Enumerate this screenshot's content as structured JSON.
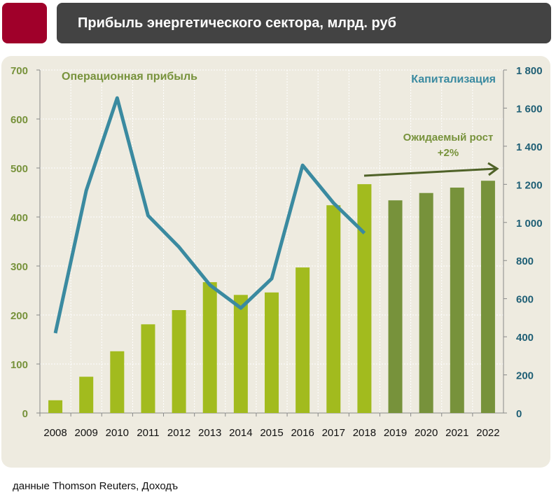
{
  "header": {
    "title": "Прибыль  энергетического сектора, млрд. руб"
  },
  "source": "данные Thomson Reuters, Доходъ",
  "colors": {
    "brand": "#a0002a",
    "header_bg": "#434343",
    "panel_bg": "#eeebe0",
    "bar_actual": "#a2bb1e",
    "bar_forecast": "#77923b",
    "line": "#3a8aa0",
    "left_axis_text": "#77923b",
    "right_axis_text": "#1f5f75",
    "arrow": "#4f6228"
  },
  "chart_data": {
    "type": "bar+line",
    "categories": [
      "2008",
      "2009",
      "2010",
      "2011",
      "2012",
      "2013",
      "2014",
      "2015",
      "2016",
      "2017",
      "2018",
      "2019",
      "2020",
      "2021",
      "2022"
    ],
    "series": [
      {
        "name": "Операционная прибыль",
        "type": "bar",
        "axis": "left",
        "values": [
          26,
          74,
          126,
          181,
          210,
          267,
          241,
          246,
          297,
          424,
          467,
          434,
          449,
          460,
          474
        ],
        "forecast_from": "2019"
      },
      {
        "name": "Капитализация",
        "type": "line",
        "axis": "right",
        "values": [
          419,
          1168,
          1653,
          1036,
          871,
          672,
          551,
          705,
          1300,
          1102,
          944,
          null,
          null,
          null,
          null
        ]
      }
    ],
    "ylim_left": [
      0,
      700
    ],
    "yticks_left": [
      "0",
      "100",
      "200",
      "300",
      "400",
      "500",
      "600",
      "700"
    ],
    "ylim_right": [
      0,
      1800
    ],
    "yticks_right": [
      "0",
      "200",
      "400",
      "600",
      "800",
      "1 000",
      "1 200",
      "1 400",
      "1 600",
      "1 800"
    ],
    "grid": true,
    "annotation": {
      "line1": "Ожидаемый рост",
      "line2": "+2%"
    }
  }
}
